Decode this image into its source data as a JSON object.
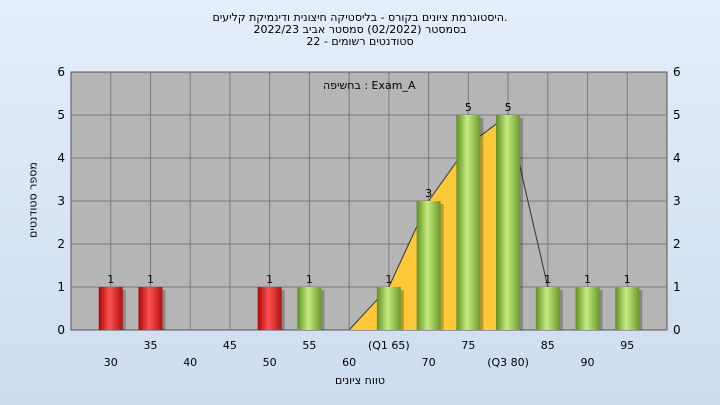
{
  "title_lines": [
    "היסטוגרמת ציונים בקורס - בליסטיקה חיצונית ודינמיקת קליעים.",
    "בסמסטר  (02/2022)  סמסטר אביב 2022/23",
    "סטודנטים רשומים - 22"
  ],
  "colors": {
    "fail_bar": "#e02020",
    "pass_bar": "#8cc63f",
    "quartile_area": "#ffc839",
    "plot_bg": "#b5b5b5",
    "grid": "#7a7a7a"
  },
  "chart_data": {
    "type": "bar",
    "title": "היסטוגרמת ציונים בקורס - בליסטיקה חיצונית ודינמיקת קליעים.",
    "xlabel": "טווח ציונים",
    "ylabel": "מספר סטודנטים",
    "ylim": [
      0,
      6
    ],
    "xlim": [
      25,
      100
    ],
    "yticks": [
      0,
      1,
      2,
      3,
      4,
      5,
      6
    ],
    "grid": true,
    "legend": {
      "label": "בחשיפה : Exam_A",
      "placement": "top-center"
    },
    "bars": [
      {
        "x": 30,
        "value": 1,
        "status": "fail"
      },
      {
        "x": 35,
        "value": 1,
        "status": "fail"
      },
      {
        "x": 50,
        "value": 1,
        "status": "fail"
      },
      {
        "x": 55,
        "value": 1,
        "status": "pass"
      },
      {
        "x": 65,
        "value": 1,
        "status": "pass"
      },
      {
        "x": 70,
        "value": 3,
        "status": "pass"
      },
      {
        "x": 75,
        "value": 5,
        "status": "pass"
      },
      {
        "x": 80,
        "value": 5,
        "status": "pass"
      },
      {
        "x": 85,
        "value": 1,
        "status": "pass"
      },
      {
        "x": 90,
        "value": 1,
        "status": "pass"
      },
      {
        "x": 95,
        "value": 1,
        "status": "pass"
      }
    ],
    "xtick_labels": [
      {
        "x": 30,
        "label": "30",
        "row": 2
      },
      {
        "x": 35,
        "label": "35",
        "row": 1
      },
      {
        "x": 40,
        "label": "40",
        "row": 2
      },
      {
        "x": 45,
        "label": "45",
        "row": 1
      },
      {
        "x": 50,
        "label": "50",
        "row": 2
      },
      {
        "x": 55,
        "label": "55",
        "row": 1
      },
      {
        "x": 60,
        "label": "60",
        "row": 2
      },
      {
        "x": 65,
        "label": "(Q1 65)",
        "row": 1
      },
      {
        "x": 70,
        "label": "70",
        "row": 2
      },
      {
        "x": 75,
        "label": "75",
        "row": 1
      },
      {
        "x": 80,
        "label": "(Q3 80)",
        "row": 2
      },
      {
        "x": 85,
        "label": "85",
        "row": 1
      },
      {
        "x": 90,
        "label": "90",
        "row": 2
      },
      {
        "x": 95,
        "label": "95",
        "row": 1
      }
    ],
    "quartile_area": [
      {
        "x": 60,
        "y": 0
      },
      {
        "x": 65,
        "y": 1
      },
      {
        "x": 70,
        "y": 3
      },
      {
        "x": 75,
        "y": 4.3
      },
      {
        "x": 80,
        "y": 5
      },
      {
        "x": 80,
        "y": 0
      }
    ],
    "trend_line": [
      {
        "x": 60,
        "y": 0
      },
      {
        "x": 65,
        "y": 1
      },
      {
        "x": 70,
        "y": 3
      },
      {
        "x": 75,
        "y": 4.3
      },
      {
        "x": 80,
        "y": 5
      },
      {
        "x": 85,
        "y": 1
      }
    ]
  }
}
